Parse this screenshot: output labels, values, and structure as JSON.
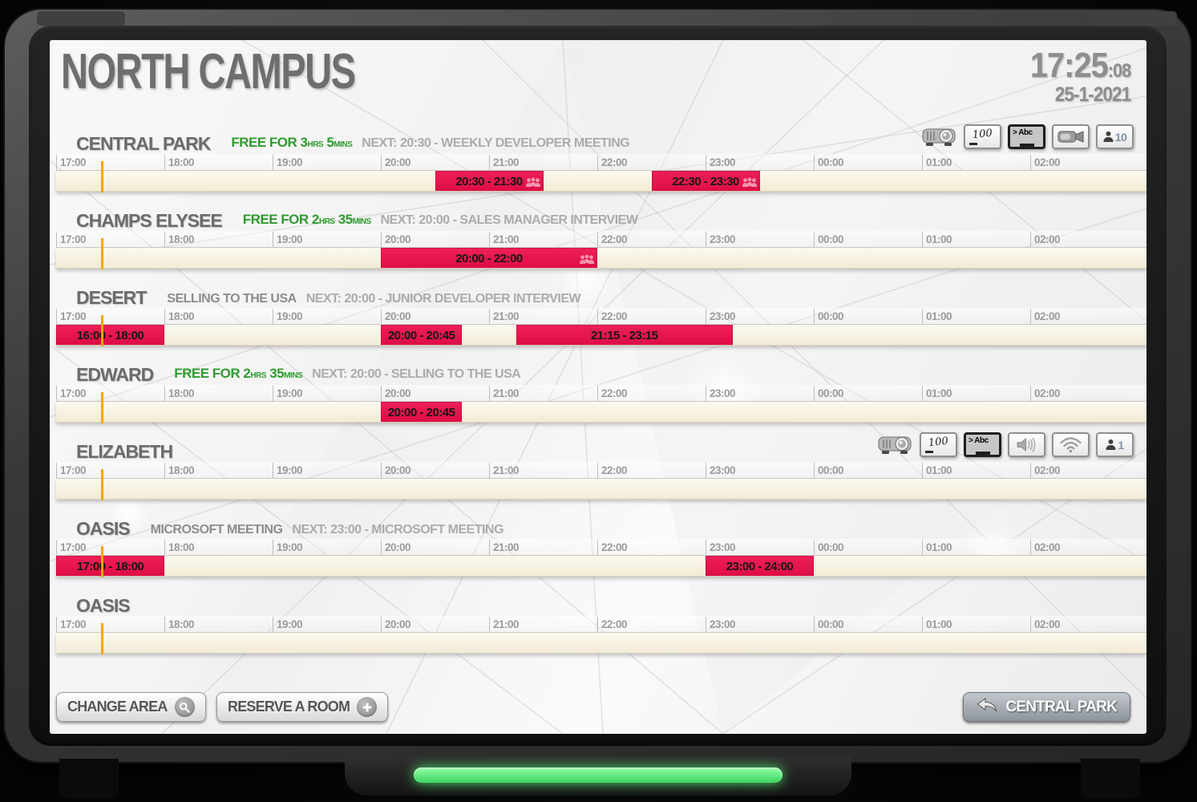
{
  "header": {
    "title": "NORTH CAMPUS",
    "time_main": "17:25",
    "time_seconds": ":08",
    "date": "25-1-2021"
  },
  "timeline": {
    "hours": [
      "17:00",
      "18:00",
      "19:00",
      "20:00",
      "21:00",
      "22:00",
      "23:00",
      "00:00",
      "01:00",
      "02:00"
    ],
    "current_time": "17:25"
  },
  "rooms": [
    {
      "name": "CENTRAL PARK",
      "status": {
        "free_prefix": "FREE FOR",
        "free_parts": [
          {
            "value": "3",
            "unit": "HRS"
          },
          {
            "value": "5",
            "unit": "MINS"
          }
        ],
        "next": "NEXT: 20:30 - WEEKLY DEVELOPER MEETING"
      },
      "amenities": [
        {
          "icon": "projector"
        },
        {
          "icon": "whiteboard",
          "label": "100"
        },
        {
          "icon": "tv",
          "label": "> Abc"
        },
        {
          "icon": "camera"
        },
        {
          "icon": "capacity",
          "label": "10"
        }
      ],
      "bookings": [
        {
          "label": "20:30 - 21:30",
          "start": "20:30",
          "end": "21:30",
          "occupants_icon": true
        },
        {
          "label": "22:30 - 23:30",
          "start": "22:30",
          "end": "23:30",
          "occupants_icon": true
        }
      ]
    },
    {
      "name": "CHAMPS ELYSEE",
      "status": {
        "free_prefix": "FREE FOR",
        "free_parts": [
          {
            "value": "2",
            "unit": "HRS"
          },
          {
            "value": "35",
            "unit": "MINS"
          }
        ],
        "next": "NEXT: 20:00 - SALES MANAGER INTERVIEW"
      },
      "amenities": [],
      "bookings": [
        {
          "label": "20:00 - 22:00",
          "start": "20:00",
          "end": "22:00",
          "occupants_icon": true
        }
      ]
    },
    {
      "name": "DESERT",
      "status": {
        "current_meeting": "SELLING TO THE USA",
        "next": "NEXT: 20:00 - JUNIOR DEVELOPER INTERVIEW"
      },
      "amenities": [],
      "bookings": [
        {
          "label": "16:00 - 18:00",
          "start": "16:00",
          "end": "18:00",
          "occupants_icon": false
        },
        {
          "label": "20:00 - 20:45",
          "start": "20:00",
          "end": "20:45",
          "occupants_icon": false
        },
        {
          "label": "21:15 - 23:15",
          "start": "21:15",
          "end": "23:15",
          "occupants_icon": false
        }
      ]
    },
    {
      "name": "EDWARD",
      "status": {
        "free_prefix": "FREE FOR",
        "free_parts": [
          {
            "value": "2",
            "unit": "HRS"
          },
          {
            "value": "35",
            "unit": "MINS"
          }
        ],
        "next": "NEXT: 20:00 - SELLING TO THE USA"
      },
      "amenities": [],
      "bookings": [
        {
          "label": "20:00 - 20:45",
          "start": "20:00",
          "end": "20:45",
          "occupants_icon": false
        }
      ]
    },
    {
      "name": "ELIZABETH",
      "status": {},
      "amenities": [
        {
          "icon": "projector"
        },
        {
          "icon": "whiteboard",
          "label": "100"
        },
        {
          "icon": "tv",
          "label": "> Abc"
        },
        {
          "icon": "speaker"
        },
        {
          "icon": "wifi"
        },
        {
          "icon": "capacity",
          "label": "1"
        }
      ],
      "bookings": []
    },
    {
      "name": "OASIS",
      "status": {
        "current_meeting": "MICROSOFT MEETING",
        "next": "NEXT: 23:00 - MICROSOFT MEETING"
      },
      "amenities": [],
      "bookings": [
        {
          "label": "17:00 - 18:00",
          "start": "17:00",
          "end": "18:00",
          "occupants_icon": false
        },
        {
          "label": "23:00 - 24:00",
          "start": "23:00",
          "end": "24:00",
          "occupants_icon": false
        }
      ]
    },
    {
      "name": "OASIS",
      "status": {},
      "amenities": [],
      "bookings": []
    }
  ],
  "footer": {
    "change_area_label": "CHANGE AREA",
    "reserve_room_label": "RESERVE A ROOM",
    "room_shortcut_label": "CENTRAL PARK"
  },
  "colors": {
    "booking_red": "#e6104c",
    "current_time_orange": "#f2a50c",
    "free_green": "#2f9b2f",
    "led_green": "#54e878",
    "bar_cream": "#f7f1dd"
  }
}
